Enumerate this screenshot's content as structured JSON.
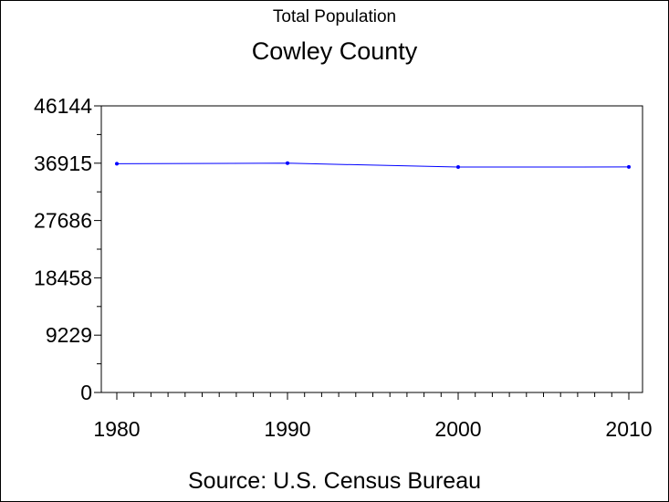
{
  "chart_data": {
    "type": "line",
    "subtitle": "Total Population",
    "title": "Cowley County",
    "source": "Source: U.S. Census Bureau",
    "xlabel": "",
    "ylabel": "",
    "x": [
      1980,
      1990,
      2000,
      2010
    ],
    "series": [
      {
        "values": [
          36824,
          36915,
          36291,
          36311
        ],
        "color": "#0000ff"
      }
    ],
    "xlim": [
      1980,
      2010
    ],
    "ylim": [
      0,
      46144
    ],
    "yticks": [
      "0",
      "9229",
      "18458",
      "27686",
      "36915",
      "46144"
    ],
    "xticks": [
      "1980",
      "1990",
      "2000",
      "2010"
    ],
    "grid": false,
    "legend": "none"
  }
}
